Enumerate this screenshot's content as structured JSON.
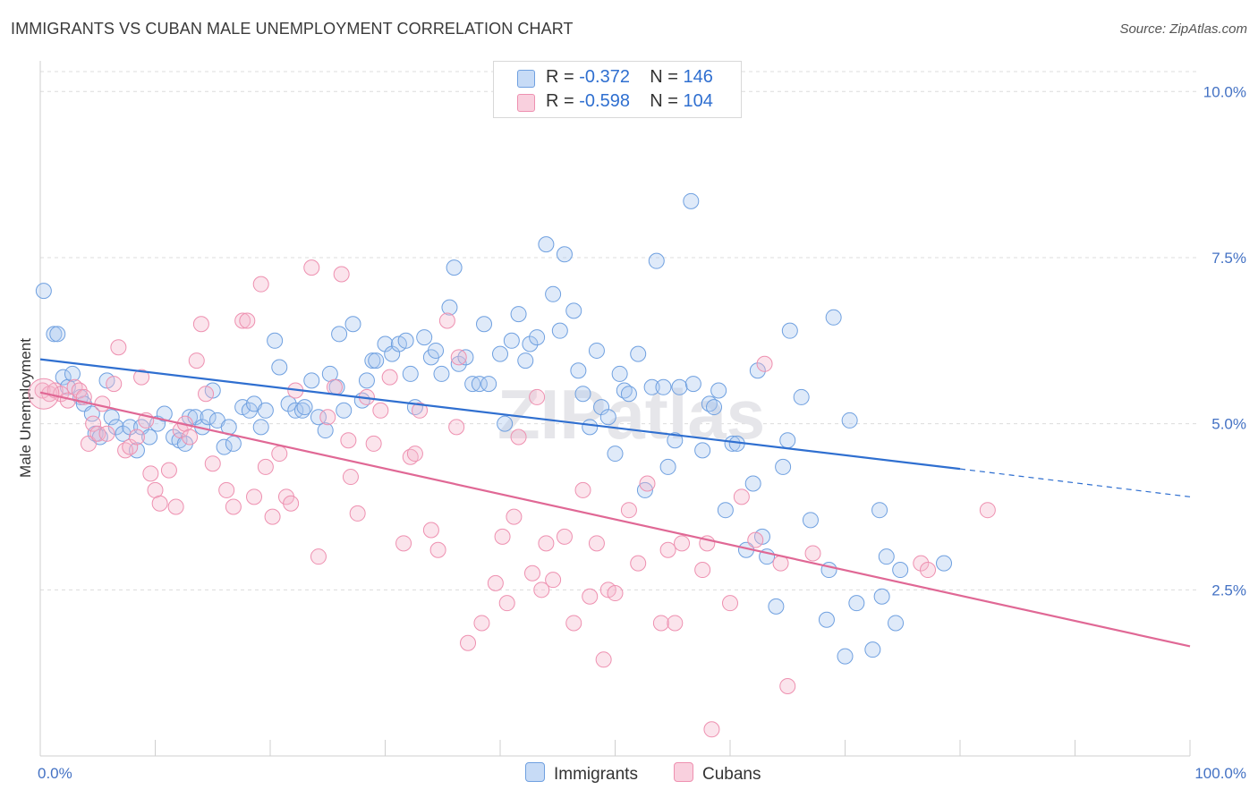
{
  "title": "IMMIGRANTS VS CUBAN MALE UNEMPLOYMENT CORRELATION CHART",
  "source": "Source: ZipAtlas.com",
  "watermark": "ZIPatlas",
  "legend": {
    "rows": [
      {
        "r_label": "R =",
        "r_value": "-0.372",
        "n_label": "N =",
        "n_value": "146",
        "color": "#aac8f0"
      },
      {
        "r_label": "R =",
        "r_value": "-0.598",
        "n_label": "N =",
        "n_value": "104",
        "color": "#f4b8cc"
      }
    ]
  },
  "bottom_legend": [
    {
      "label": "Immigrants",
      "color": "#aac8f0"
    },
    {
      "label": "Cubans",
      "color": "#f4b8cc"
    }
  ],
  "chart_data": {
    "type": "scatter",
    "ylabel": "Male Unemployment",
    "xlabel": "",
    "x_tick_labels": [
      "0.0%",
      "100.0%"
    ],
    "y_tick_labels": [
      "2.5%",
      "5.0%",
      "7.5%",
      "10.0%"
    ],
    "y_ticks": [
      2.5,
      5.0,
      7.5,
      10.0
    ],
    "xlim": [
      0,
      100
    ],
    "ylim": [
      0,
      10.3
    ],
    "grid": true,
    "series": [
      {
        "name": "Immigrants",
        "color": "#6fa0e0",
        "trend": {
          "x0": 0,
          "y0": 5.97,
          "x1": 80,
          "y1": 4.32,
          "dash_to_x": 100,
          "dash_to_y": 3.9,
          "color": "#2f6fd0"
        },
        "points": [
          [
            0.3,
            7.0
          ],
          [
            1.2,
            6.35
          ],
          [
            1.5,
            6.35
          ],
          [
            2.0,
            5.7
          ],
          [
            2.4,
            5.55
          ],
          [
            2.8,
            5.75
          ],
          [
            3.5,
            5.4
          ],
          [
            3.8,
            5.3
          ],
          [
            4.5,
            5.15
          ],
          [
            4.8,
            4.85
          ],
          [
            5.2,
            4.8
          ],
          [
            5.8,
            5.65
          ],
          [
            6.2,
            5.1
          ],
          [
            6.6,
            4.95
          ],
          [
            7.2,
            4.85
          ],
          [
            7.8,
            4.95
          ],
          [
            8.4,
            4.6
          ],
          [
            8.8,
            4.95
          ],
          [
            9.5,
            4.8
          ],
          [
            10.2,
            5.0
          ],
          [
            10.8,
            5.15
          ],
          [
            11.6,
            4.8
          ],
          [
            12.1,
            4.75
          ],
          [
            12.6,
            4.7
          ],
          [
            13.0,
            5.1
          ],
          [
            13.5,
            5.1
          ],
          [
            14.1,
            4.95
          ],
          [
            14.6,
            5.1
          ],
          [
            15.0,
            5.5
          ],
          [
            15.4,
            5.05
          ],
          [
            16.0,
            4.65
          ],
          [
            16.4,
            4.95
          ],
          [
            16.8,
            4.7
          ],
          [
            17.6,
            5.25
          ],
          [
            18.2,
            5.2
          ],
          [
            18.6,
            5.3
          ],
          [
            19.2,
            4.95
          ],
          [
            19.6,
            5.2
          ],
          [
            20.4,
            6.25
          ],
          [
            20.8,
            5.85
          ],
          [
            21.6,
            5.3
          ],
          [
            22.2,
            5.2
          ],
          [
            22.8,
            5.2
          ],
          [
            23.0,
            5.25
          ],
          [
            23.6,
            5.65
          ],
          [
            24.2,
            5.1
          ],
          [
            24.8,
            4.9
          ],
          [
            25.2,
            5.75
          ],
          [
            25.8,
            5.55
          ],
          [
            26.0,
            6.35
          ],
          [
            26.4,
            5.2
          ],
          [
            27.2,
            6.5
          ],
          [
            28.0,
            5.35
          ],
          [
            28.4,
            5.65
          ],
          [
            28.9,
            5.95
          ],
          [
            29.2,
            5.95
          ],
          [
            30.0,
            6.2
          ],
          [
            30.6,
            6.05
          ],
          [
            31.2,
            6.2
          ],
          [
            31.8,
            6.25
          ],
          [
            32.2,
            5.75
          ],
          [
            32.6,
            5.25
          ],
          [
            33.4,
            6.3
          ],
          [
            34.0,
            6.0
          ],
          [
            34.4,
            6.1
          ],
          [
            34.9,
            5.75
          ],
          [
            35.6,
            6.75
          ],
          [
            36.0,
            7.35
          ],
          [
            36.4,
            5.9
          ],
          [
            37.0,
            6.0
          ],
          [
            37.6,
            5.6
          ],
          [
            38.2,
            5.6
          ],
          [
            38.6,
            6.5
          ],
          [
            39.0,
            5.6
          ],
          [
            40.0,
            6.05
          ],
          [
            40.4,
            5.0
          ],
          [
            41.0,
            6.25
          ],
          [
            41.6,
            6.65
          ],
          [
            42.2,
            5.95
          ],
          [
            42.6,
            6.2
          ],
          [
            43.2,
            6.3
          ],
          [
            44.0,
            7.7
          ],
          [
            44.6,
            6.95
          ],
          [
            45.2,
            6.4
          ],
          [
            45.6,
            7.55
          ],
          [
            46.4,
            6.7
          ],
          [
            46.8,
            5.8
          ],
          [
            47.2,
            5.45
          ],
          [
            47.8,
            4.95
          ],
          [
            48.4,
            6.1
          ],
          [
            48.8,
            5.25
          ],
          [
            49.4,
            5.1
          ],
          [
            50.0,
            4.55
          ],
          [
            50.4,
            5.75
          ],
          [
            50.8,
            5.5
          ],
          [
            51.2,
            5.45
          ],
          [
            52.0,
            6.05
          ],
          [
            52.6,
            4.0
          ],
          [
            53.2,
            5.55
          ],
          [
            53.6,
            7.45
          ],
          [
            54.2,
            5.55
          ],
          [
            54.6,
            4.35
          ],
          [
            55.2,
            4.75
          ],
          [
            55.6,
            5.55
          ],
          [
            56.6,
            8.35
          ],
          [
            56.8,
            5.6
          ],
          [
            57.6,
            4.6
          ],
          [
            58.2,
            5.3
          ],
          [
            58.6,
            5.25
          ],
          [
            59.0,
            5.5
          ],
          [
            59.6,
            3.7
          ],
          [
            60.2,
            4.7
          ],
          [
            60.6,
            4.7
          ],
          [
            61.4,
            3.1
          ],
          [
            62.0,
            4.1
          ],
          [
            62.4,
            5.8
          ],
          [
            62.8,
            3.3
          ],
          [
            63.2,
            3.0
          ],
          [
            64.0,
            2.25
          ],
          [
            64.6,
            4.35
          ],
          [
            65.0,
            4.75
          ],
          [
            65.2,
            6.4
          ],
          [
            66.2,
            5.4
          ],
          [
            67.0,
            3.55
          ],
          [
            68.4,
            2.05
          ],
          [
            68.6,
            2.8
          ],
          [
            69.0,
            6.6
          ],
          [
            70.0,
            1.5
          ],
          [
            70.4,
            5.05
          ],
          [
            71.0,
            2.3
          ],
          [
            72.4,
            1.6
          ],
          [
            73.0,
            3.7
          ],
          [
            73.2,
            2.4
          ],
          [
            73.6,
            3.0
          ],
          [
            74.4,
            2.0
          ],
          [
            74.8,
            2.8
          ],
          [
            78.6,
            2.9
          ]
        ]
      },
      {
        "name": "Cubans",
        "color": "#ee90b0",
        "trend": {
          "x0": 0,
          "y0": 5.47,
          "x1": 100,
          "y1": 1.65,
          "color": "#e06895"
        },
        "points": [
          [
            0.2,
            5.5
          ],
          [
            0.8,
            5.45
          ],
          [
            1.3,
            5.5
          ],
          [
            1.8,
            5.45
          ],
          [
            2.4,
            5.35
          ],
          [
            3.0,
            5.55
          ],
          [
            3.4,
            5.5
          ],
          [
            3.8,
            5.4
          ],
          [
            4.2,
            4.7
          ],
          [
            4.6,
            5.0
          ],
          [
            5.0,
            4.85
          ],
          [
            5.4,
            5.3
          ],
          [
            5.8,
            4.85
          ],
          [
            6.4,
            5.6
          ],
          [
            6.8,
            6.15
          ],
          [
            7.4,
            4.6
          ],
          [
            7.8,
            4.65
          ],
          [
            8.4,
            4.8
          ],
          [
            8.8,
            5.7
          ],
          [
            9.2,
            5.05
          ],
          [
            9.6,
            4.25
          ],
          [
            10.0,
            4.0
          ],
          [
            10.4,
            3.8
          ],
          [
            11.2,
            4.3
          ],
          [
            11.8,
            3.75
          ],
          [
            12.2,
            4.9
          ],
          [
            12.6,
            5.0
          ],
          [
            13.0,
            4.8
          ],
          [
            13.6,
            5.95
          ],
          [
            14.0,
            6.5
          ],
          [
            14.4,
            5.45
          ],
          [
            15.0,
            4.4
          ],
          [
            16.2,
            4.0
          ],
          [
            16.8,
            3.75
          ],
          [
            17.6,
            6.55
          ],
          [
            18.0,
            6.55
          ],
          [
            18.6,
            3.9
          ],
          [
            19.2,
            7.1
          ],
          [
            19.6,
            4.35
          ],
          [
            20.2,
            3.6
          ],
          [
            20.8,
            4.55
          ],
          [
            21.4,
            3.9
          ],
          [
            21.8,
            3.8
          ],
          [
            22.2,
            5.5
          ],
          [
            23.6,
            7.35
          ],
          [
            24.2,
            3.0
          ],
          [
            25.0,
            5.1
          ],
          [
            25.6,
            5.55
          ],
          [
            26.2,
            7.25
          ],
          [
            26.8,
            4.75
          ],
          [
            27.0,
            4.2
          ],
          [
            27.6,
            3.65
          ],
          [
            28.4,
            5.4
          ],
          [
            29.0,
            4.7
          ],
          [
            29.6,
            5.2
          ],
          [
            30.4,
            5.7
          ],
          [
            31.6,
            3.2
          ],
          [
            32.2,
            4.5
          ],
          [
            32.6,
            4.55
          ],
          [
            33.0,
            5.2
          ],
          [
            34.0,
            3.4
          ],
          [
            34.6,
            3.1
          ],
          [
            35.4,
            6.55
          ],
          [
            36.2,
            4.95
          ],
          [
            36.4,
            6.0
          ],
          [
            37.2,
            1.7
          ],
          [
            38.4,
            2.0
          ],
          [
            39.6,
            2.6
          ],
          [
            40.2,
            3.3
          ],
          [
            40.6,
            2.3
          ],
          [
            41.2,
            3.6
          ],
          [
            41.6,
            4.8
          ],
          [
            42.8,
            2.75
          ],
          [
            43.2,
            5.4
          ],
          [
            43.6,
            2.5
          ],
          [
            44.0,
            3.2
          ],
          [
            44.6,
            2.65
          ],
          [
            45.6,
            3.3
          ],
          [
            46.4,
            2.0
          ],
          [
            47.2,
            4.0
          ],
          [
            47.8,
            2.4
          ],
          [
            48.4,
            3.2
          ],
          [
            49.0,
            1.45
          ],
          [
            49.4,
            2.5
          ],
          [
            50.0,
            2.45
          ],
          [
            51.2,
            3.7
          ],
          [
            52.0,
            2.9
          ],
          [
            52.8,
            4.1
          ],
          [
            54.0,
            2.0
          ],
          [
            54.6,
            3.1
          ],
          [
            55.2,
            2.0
          ],
          [
            55.8,
            3.2
          ],
          [
            57.6,
            2.8
          ],
          [
            58.0,
            3.2
          ],
          [
            58.4,
            0.4
          ],
          [
            60.0,
            2.3
          ],
          [
            61.0,
            3.9
          ],
          [
            62.2,
            3.25
          ],
          [
            63.0,
            5.9
          ],
          [
            64.4,
            2.9
          ],
          [
            65.0,
            1.05
          ],
          [
            67.2,
            3.05
          ],
          [
            76.6,
            2.9
          ],
          [
            77.2,
            2.8
          ],
          [
            82.4,
            3.7
          ]
        ]
      }
    ]
  }
}
